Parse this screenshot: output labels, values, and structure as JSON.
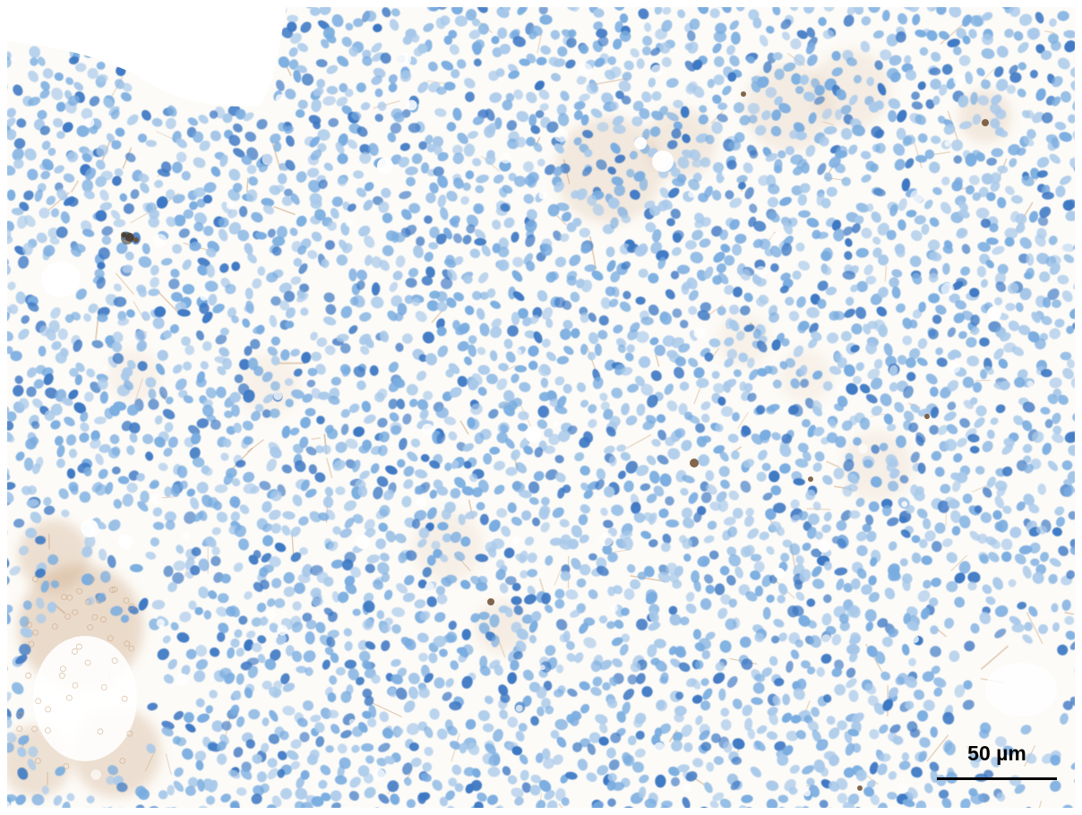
{
  "image": {
    "background_color": "#fdfbf7",
    "nucleus_color_light": "#a9c9ea",
    "nucleus_color": "#79ace0",
    "nucleus_color_dark": "#3d78c4",
    "stain_color": "#c79f78",
    "stain_color_dark": "#6b4a2e",
    "blank_area_color": "#ffffff"
  },
  "scale_bar": {
    "label": "50 µm",
    "color": "#000000"
  }
}
